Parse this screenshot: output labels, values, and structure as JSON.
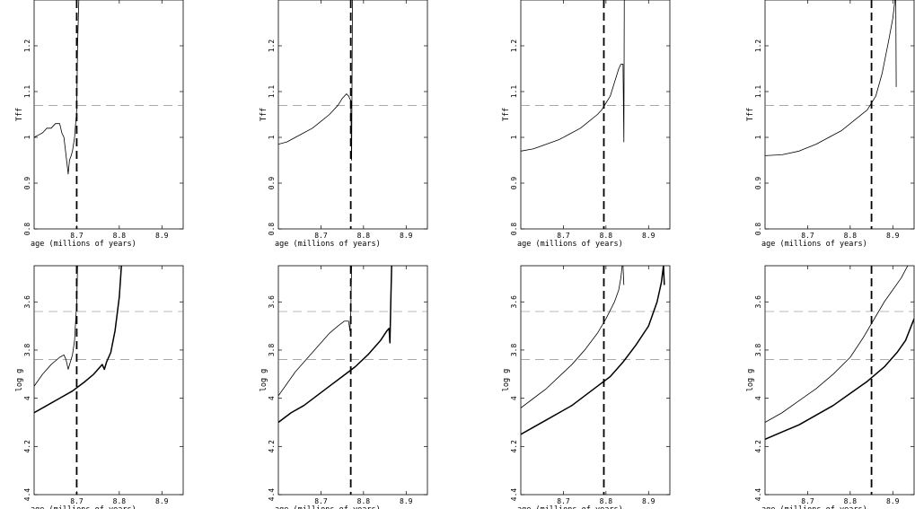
{
  "chart_data": [
    {
      "type": "line",
      "row": "top",
      "xlabel": "age  (millions of years)",
      "ylabel": "Tff",
      "xlim": [
        8.6,
        8.95
      ],
      "ylim": [
        0.8,
        1.3
      ],
      "xticks": [
        "8.7",
        "8.8",
        "8.9"
      ],
      "yticks": [
        "0.8",
        "0.9",
        "1",
        "1.1",
        "1.2"
      ],
      "grid": false,
      "reference_lines": {
        "y": [
          1.07
        ],
        "x": [
          8.7
        ]
      },
      "series": [
        {
          "x": [
            8.6,
            8.61,
            8.62,
            8.63,
            8.64,
            8.65,
            8.66,
            8.665,
            8.67,
            8.675,
            8.68,
            8.683,
            8.687,
            8.69,
            8.695,
            8.7,
            8.702,
            8.705
          ],
          "y": [
            1.0,
            1.005,
            1.01,
            1.02,
            1.02,
            1.03,
            1.03,
            1.01,
            1.0,
            0.96,
            0.92,
            0.95,
            0.96,
            0.97,
            1.0,
            1.06,
            1.2,
            1.3
          ],
          "width": "thin"
        }
      ]
    },
    {
      "type": "line",
      "row": "top",
      "xlabel": "age  (millions of years)",
      "ylabel": "Tff",
      "xlim": [
        8.6,
        8.95
      ],
      "ylim": [
        0.8,
        1.3
      ],
      "xticks": [
        "8.7",
        "8.8",
        "8.9"
      ],
      "yticks": [
        "0.8",
        "0.9",
        "1",
        "1.1",
        "1.2"
      ],
      "grid": false,
      "reference_lines": {
        "y": [
          1.07
        ],
        "x": [
          8.77
        ]
      },
      "series": [
        {
          "x": [
            8.6,
            8.62,
            8.64,
            8.66,
            8.68,
            8.7,
            8.72,
            8.74,
            8.75,
            8.76,
            8.765,
            8.77,
            8.772,
            8.774
          ],
          "y": [
            0.985,
            0.99,
            1.0,
            1.01,
            1.02,
            1.035,
            1.05,
            1.07,
            1.085,
            1.095,
            1.09,
            1.08,
            0.95,
            1.3
          ],
          "width": "thin"
        }
      ]
    },
    {
      "type": "line",
      "row": "top",
      "xlabel": "age  (millions of years)",
      "ylabel": "Tff",
      "xlim": [
        8.6,
        8.95
      ],
      "ylim": [
        0.8,
        1.3
      ],
      "xticks": [
        "8.7",
        "8.8",
        "8.9"
      ],
      "yticks": [
        "0.8",
        "0.9",
        "1",
        "1.1",
        "1.2"
      ],
      "grid": false,
      "reference_lines": {
        "y": [
          1.07
        ],
        "x": [
          8.795
        ]
      },
      "series": [
        {
          "x": [
            8.6,
            8.63,
            8.66,
            8.69,
            8.72,
            8.74,
            8.76,
            8.78,
            8.79,
            8.8,
            8.81,
            8.82,
            8.83,
            8.835,
            8.84,
            8.842,
            8.843,
            8.844
          ],
          "y": [
            0.97,
            0.975,
            0.985,
            0.995,
            1.01,
            1.02,
            1.035,
            1.05,
            1.06,
            1.075,
            1.09,
            1.12,
            1.15,
            1.16,
            1.16,
            0.99,
            1.3,
            1.3
          ],
          "width": "thin"
        }
      ]
    },
    {
      "type": "line",
      "row": "top",
      "xlabel": "age  (millions of years)",
      "ylabel": "Tff",
      "xlim": [
        8.6,
        8.95
      ],
      "ylim": [
        0.8,
        1.3
      ],
      "xticks": [
        "8.7",
        "8.8",
        "8.9"
      ],
      "yticks": [
        "0.8",
        "0.9",
        "1",
        "1.1",
        "1.2"
      ],
      "grid": false,
      "reference_lines": {
        "y": [
          1.07
        ],
        "x": [
          8.85
        ]
      },
      "series": [
        {
          "x": [
            8.6,
            8.64,
            8.68,
            8.72,
            8.75,
            8.78,
            8.8,
            8.82,
            8.84,
            8.86,
            8.875,
            8.89,
            8.9,
            8.905,
            8.907,
            8.908
          ],
          "y": [
            0.96,
            0.962,
            0.97,
            0.985,
            1.0,
            1.015,
            1.03,
            1.045,
            1.06,
            1.09,
            1.14,
            1.21,
            1.26,
            1.3,
            1.3,
            1.11
          ],
          "width": "thin"
        }
      ]
    },
    {
      "type": "line",
      "row": "bottom",
      "xlabel": "age  (millions of years)",
      "ylabel": "log g",
      "xlim": [
        8.6,
        8.95
      ],
      "ylim": [
        4.4,
        3.45
      ],
      "y_inverted": true,
      "xticks": [
        "8.7",
        "8.8",
        "8.9"
      ],
      "yticks": [
        "3.6",
        "3.8",
        "4",
        "4.2",
        "4.4"
      ],
      "grid": false,
      "reference_lines": {
        "y": [
          3.64,
          3.84
        ],
        "x": [
          8.7
        ]
      },
      "series": [
        {
          "x": [
            8.6,
            8.62,
            8.64,
            8.66,
            8.67,
            8.675,
            8.68,
            8.685,
            8.69,
            8.695,
            8.7,
            8.702
          ],
          "y": [
            3.95,
            3.9,
            3.86,
            3.83,
            3.82,
            3.84,
            3.88,
            3.85,
            3.82,
            3.76,
            3.6,
            3.45
          ],
          "width": "thin"
        },
        {
          "x": [
            8.6,
            8.63,
            8.66,
            8.69,
            8.72,
            8.74,
            8.76,
            8.765,
            8.77,
            8.775,
            8.78,
            8.79,
            8.8,
            8.805
          ],
          "y": [
            4.06,
            4.03,
            4.0,
            3.97,
            3.93,
            3.9,
            3.86,
            3.88,
            3.85,
            3.83,
            3.81,
            3.72,
            3.58,
            3.45
          ],
          "width": "thick"
        }
      ]
    },
    {
      "type": "line",
      "row": "bottom",
      "xlabel": "age  (millions of years)",
      "ylabel": "log g",
      "xlim": [
        8.6,
        8.95
      ],
      "ylim": [
        4.4,
        3.45
      ],
      "y_inverted": true,
      "xticks": [
        "8.7",
        "8.8",
        "8.9"
      ],
      "yticks": [
        "3.6",
        "3.8",
        "4",
        "4.2",
        "4.4"
      ],
      "grid": false,
      "reference_lines": {
        "y": [
          3.64,
          3.84
        ],
        "x": [
          8.77
        ]
      },
      "series": [
        {
          "x": [
            8.6,
            8.62,
            8.64,
            8.66,
            8.68,
            8.7,
            8.72,
            8.74,
            8.755,
            8.765,
            8.768,
            8.77,
            8.772
          ],
          "y": [
            3.99,
            3.94,
            3.89,
            3.85,
            3.81,
            3.77,
            3.73,
            3.7,
            3.68,
            3.68,
            3.72,
            3.65,
            3.45
          ],
          "width": "thin"
        },
        {
          "x": [
            8.6,
            8.63,
            8.66,
            8.69,
            8.72,
            8.75,
            8.78,
            8.81,
            8.84,
            8.855,
            8.86,
            8.862,
            8.864,
            8.866
          ],
          "y": [
            4.1,
            4.06,
            4.03,
            3.99,
            3.95,
            3.91,
            3.87,
            3.82,
            3.76,
            3.72,
            3.71,
            3.77,
            3.6,
            3.45
          ],
          "width": "thick"
        }
      ]
    },
    {
      "type": "line",
      "row": "bottom",
      "xlabel": "age  (millions of years)",
      "ylabel": "log g",
      "xlim": [
        8.6,
        8.95
      ],
      "ylim": [
        4.4,
        3.45
      ],
      "y_inverted": true,
      "xticks": [
        "8.7",
        "8.8",
        "8.9"
      ],
      "yticks": [
        "3.6",
        "3.8",
        "4",
        "4.2",
        "4.4"
      ],
      "grid": false,
      "reference_lines": {
        "y": [
          3.64,
          3.84
        ],
        "x": [
          8.795
        ]
      },
      "series": [
        {
          "x": [
            8.6,
            8.63,
            8.66,
            8.69,
            8.72,
            8.75,
            8.78,
            8.8,
            8.82,
            8.83,
            8.835,
            8.838,
            8.84,
            8.842
          ],
          "y": [
            4.04,
            4.0,
            3.96,
            3.91,
            3.86,
            3.8,
            3.73,
            3.67,
            3.6,
            3.55,
            3.5,
            3.45,
            3.45,
            3.53
          ],
          "width": "thin"
        },
        {
          "x": [
            8.6,
            8.63,
            8.66,
            8.69,
            8.72,
            8.75,
            8.78,
            8.81,
            8.84,
            8.87,
            8.9,
            8.92,
            8.93,
            8.935,
            8.937
          ],
          "y": [
            4.15,
            4.12,
            4.09,
            4.06,
            4.03,
            3.99,
            3.95,
            3.91,
            3.85,
            3.78,
            3.7,
            3.6,
            3.52,
            3.45,
            3.53
          ],
          "width": "thick"
        }
      ]
    },
    {
      "type": "line",
      "row": "bottom",
      "xlabel": "age  (millions of years)",
      "ylabel": "log g",
      "xlim": [
        8.6,
        8.95
      ],
      "ylim": [
        4.4,
        3.45
      ],
      "y_inverted": true,
      "xticks": [
        "8.7",
        "8.8",
        "8.9"
      ],
      "yticks": [
        "3.6",
        "3.8",
        "4",
        "4.2",
        "4.4"
      ],
      "grid": false,
      "reference_lines": {
        "y": [
          3.64,
          3.84
        ],
        "x": [
          8.85
        ]
      },
      "series": [
        {
          "x": [
            8.6,
            8.64,
            8.68,
            8.72,
            8.76,
            8.8,
            8.83,
            8.86,
            8.88,
            8.9,
            8.92,
            8.935
          ],
          "y": [
            4.1,
            4.06,
            4.01,
            3.96,
            3.9,
            3.83,
            3.75,
            3.66,
            3.6,
            3.55,
            3.5,
            3.45
          ],
          "width": "thin"
        },
        {
          "x": [
            8.6,
            8.64,
            8.68,
            8.72,
            8.76,
            8.8,
            8.84,
            8.88,
            8.91,
            8.93,
            8.95
          ],
          "y": [
            4.17,
            4.14,
            4.11,
            4.07,
            4.03,
            3.98,
            3.93,
            3.87,
            3.81,
            3.76,
            3.67
          ],
          "width": "thick"
        }
      ]
    }
  ]
}
